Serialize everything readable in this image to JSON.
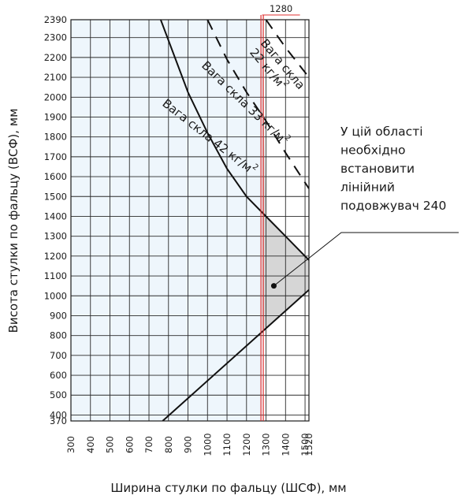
{
  "chart_data": {
    "type": "line",
    "xlabel": "Ширина стулки по фальцу (ШСФ), мм",
    "ylabel": "Висота стулки по фальцу (ВСФ), мм",
    "xlim": [
      300,
      1520
    ],
    "ylim": [
      370,
      2390
    ],
    "x_ticks": [
      300,
      400,
      500,
      600,
      700,
      800,
      900,
      1000,
      1100,
      1200,
      1300,
      1400,
      1500,
      1520
    ],
    "x_tick_labels": [
      "300",
      "400",
      "500",
      "600",
      "700",
      "800",
      "900",
      "1000",
      "1100",
      "1200",
      "1300",
      "1400",
      "1500",
      "1520"
    ],
    "y_ticks": [
      370,
      400,
      500,
      600,
      700,
      800,
      900,
      1000,
      1100,
      1200,
      1300,
      1400,
      1500,
      1600,
      1700,
      1800,
      1900,
      2000,
      2100,
      2200,
      2300,
      2390
    ],
    "y_tick_labels": [
      "370",
      "400",
      "500",
      "600",
      "700",
      "800",
      "900",
      "1000",
      "1100",
      "1200",
      "1300",
      "1400",
      "1500",
      "1600",
      "1700",
      "1800",
      "1900",
      "2000",
      "2100",
      "2200",
      "2300",
      "2390"
    ],
    "grid": true,
    "limit_line": {
      "x": 1280,
      "label": "1280",
      "color": "#e03030"
    },
    "min_line": {
      "points": [
        [
          770,
          370
        ],
        [
          1520,
          1030
        ]
      ]
    },
    "series": [
      {
        "name": "Вага скла 42 кг/м²",
        "style": "solid",
        "label_lines": [
          "Вага скла 42 кг/м",
          "2"
        ],
        "points": [
          [
            760,
            2390
          ],
          [
            900,
            2025
          ],
          [
            1000,
            1820
          ],
          [
            1100,
            1640
          ],
          [
            1200,
            1500
          ],
          [
            1300,
            1400
          ],
          [
            1400,
            1300
          ],
          [
            1500,
            1200
          ],
          [
            1520,
            1180
          ]
        ]
      },
      {
        "name": "Вага скла 33 кг/м²",
        "style": "dashed",
        "label_lines": [
          "Вага скла 33 кг/м",
          "2"
        ],
        "points": [
          [
            1000,
            2390
          ],
          [
            1100,
            2190
          ],
          [
            1200,
            2025
          ],
          [
            1300,
            1880
          ],
          [
            1400,
            1720
          ],
          [
            1520,
            1540
          ]
        ]
      },
      {
        "name": "Вага скла 22 кг/м²",
        "style": "dashed",
        "label_lines": [
          "Вага скла",
          "22 кг/м",
          "2"
        ],
        "points": [
          [
            1300,
            2390
          ],
          [
            1400,
            2250
          ],
          [
            1520,
            2100
          ]
        ]
      }
    ],
    "regions": {
      "allowed_fill": "#eef6fc",
      "extender_fill": "#d6d6d6",
      "extender_note": [
        "У цій області",
        "необхідно",
        "встановити",
        "лінійний",
        "подовжувач 240"
      ],
      "note_pointer_at": [
        1340,
        1050
      ]
    }
  }
}
